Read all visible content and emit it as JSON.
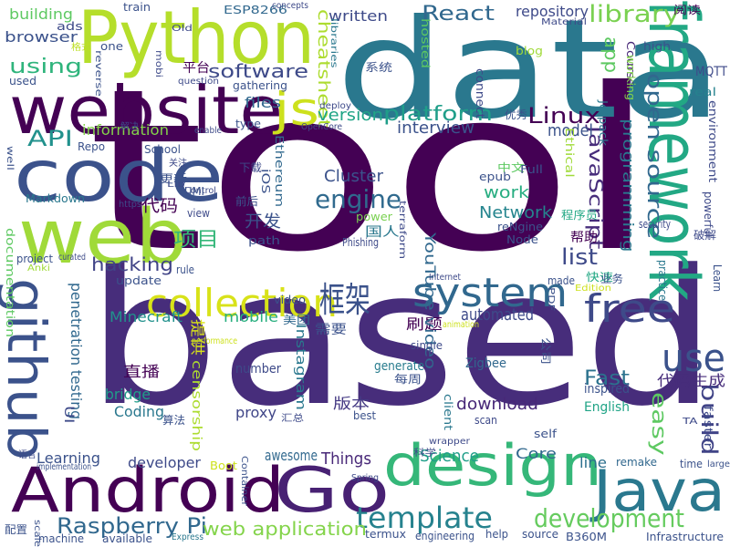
{
  "words": [
    {
      "text": "tool",
      "color": "#440154"
    },
    {
      "text": "based",
      "color": "#472d7b"
    },
    {
      "text": "data",
      "color": "#2a788e"
    },
    {
      "text": "Python",
      "color": "#b5de2b"
    },
    {
      "text": "website",
      "color": "#440154"
    },
    {
      "text": "code",
      "color": "#3b528b"
    },
    {
      "text": "web",
      "color": "#a0da39"
    },
    {
      "text": "framework",
      "color": "#22a884"
    },
    {
      "text": "design",
      "color": "#35b779"
    },
    {
      "text": "Android",
      "color": "#440154"
    },
    {
      "text": "Go",
      "color": "#482173"
    },
    {
      "text": "Java",
      "color": "#2a788e"
    },
    {
      "text": "github",
      "color": "#3b528b"
    },
    {
      "text": "js",
      "color": "#cde11d"
    },
    {
      "text": "system",
      "color": "#31688e"
    },
    {
      "text": "collection",
      "color": "#d8e219"
    },
    {
      "text": "free",
      "color": "#3e4a89"
    },
    {
      "text": "use",
      "color": "#3b528b"
    },
    {
      "text": "template",
      "color": "#26828e"
    },
    {
      "text": "development",
      "color": "#65cb5e"
    },
    {
      "text": "Raspberry Pi",
      "color": "#31688e"
    },
    {
      "text": "web application",
      "color": "#84d44b"
    },
    {
      "text": "React",
      "color": "#31688e"
    },
    {
      "text": "library",
      "color": "#7ad151"
    },
    {
      "text": "using",
      "color": "#2fb47c"
    },
    {
      "text": "software",
      "color": "#3e4a89"
    },
    {
      "text": "platform",
      "color": "#1f9e89"
    },
    {
      "text": "Linux",
      "color": "#440154"
    },
    {
      "text": "框架",
      "color": "#3b528b"
    },
    {
      "text": "engine",
      "color": "#306a8e"
    },
    {
      "text": "open source",
      "color": "#31688e"
    },
    {
      "text": "JavaScript",
      "color": "#472d7b"
    },
    {
      "text": "build",
      "color": "#414487"
    },
    {
      "text": "easy",
      "color": "#5ec962"
    },
    {
      "text": "list",
      "color": "#3e4a89"
    },
    {
      "text": "hacking",
      "color": "#414487"
    },
    {
      "text": "API",
      "color": "#21918c"
    },
    {
      "text": "app",
      "color": "#5ec962"
    },
    {
      "text": "cheatsheet",
      "color": "#addc30"
    },
    {
      "text": "Fast",
      "color": "#2c728e"
    },
    {
      "text": "代码生成",
      "color": "#472d7b"
    },
    {
      "text": "download",
      "color": "#482878"
    },
    {
      "text": "项目",
      "color": "#35b779"
    },
    {
      "text": "代码",
      "color": "#440154"
    },
    {
      "text": "version",
      "color": "#20a486"
    },
    {
      "text": "files",
      "color": "#31688e"
    },
    {
      "text": "interview",
      "color": "#3b528b"
    },
    {
      "text": "model",
      "color": "#3b528b"
    },
    {
      "text": "Cluster",
      "color": "#3b528b"
    },
    {
      "text": "work",
      "color": "#27ad81"
    },
    {
      "text": "Network",
      "color": "#25858e"
    },
    {
      "text": "automated",
      "color": "#3e4a89"
    },
    {
      "text": "Minecraft",
      "color": "#21918c"
    },
    {
      "text": "mobile",
      "color": "#29af7f"
    },
    {
      "text": "penetration testing",
      "color": "#31688e"
    },
    {
      "text": "Things",
      "color": "#482878"
    },
    {
      "text": "Science",
      "color": "#1f9e89"
    },
    {
      "text": "Learning",
      "color": "#3b528b"
    },
    {
      "text": "building",
      "color": "#5ec962"
    },
    {
      "text": "browser",
      "color": "#3b528b"
    },
    {
      "text": "written",
      "color": "#3e4a89"
    },
    {
      "text": "repository",
      "color": "#3e4a89"
    },
    {
      "text": "information",
      "color": "#84d44b"
    },
    {
      "text": "programming",
      "color": "#2a788e"
    },
    {
      "text": "开发",
      "color": "#3b528b"
    },
    {
      "text": "直播",
      "color": "#440154"
    },
    {
      "text": "版本",
      "color": "#443983"
    },
    {
      "text": "刷题",
      "color": "#440154"
    },
    {
      "text": "bridge",
      "color": "#1f9e89"
    },
    {
      "text": "Coding",
      "color": "#2a788e"
    },
    {
      "text": "proxy",
      "color": "#404688"
    },
    {
      "text": "developer",
      "color": "#3e4a89"
    },
    {
      "text": "awesome",
      "color": "#31688e"
    },
    {
      "text": "Core",
      "color": "#31688e"
    },
    {
      "text": "line",
      "color": "#2d708e"
    },
    {
      "text": "YouTube video",
      "color": "#31688e"
    },
    {
      "text": "Instagram",
      "color": "#2a788e"
    },
    {
      "text": "English",
      "color": "#20a486"
    },
    {
      "text": "inspired",
      "color": "#3b528b"
    },
    {
      "text": "generate",
      "color": "#287c8e"
    },
    {
      "text": "Zigbee",
      "color": "#31688e"
    },
    {
      "text": "number",
      "color": "#3e4a89"
    },
    {
      "text": "censorship",
      "color": "#addc30"
    },
    {
      "text": "提供",
      "color": "#d8e219"
    },
    {
      "text": "需要",
      "color": "#3b528b"
    },
    {
      "text": "美团",
      "color": "#31688e"
    },
    {
      "text": "Ethereum",
      "color": "#31688e"
    },
    {
      "text": "Phishing",
      "color": "#3e4a89"
    },
    {
      "text": "国人",
      "color": "#2a788e"
    },
    {
      "text": "reNgine",
      "color": "#3b528b"
    },
    {
      "text": "Node",
      "color": "#3b528b"
    },
    {
      "text": "path",
      "color": "#3b528b"
    },
    {
      "text": "power",
      "color": "#7ad151"
    },
    {
      "text": "中文",
      "color": "#5ec962"
    },
    {
      "text": "Full",
      "color": "#3b528b"
    },
    {
      "text": "epub",
      "color": "#3b528b"
    },
    {
      "text": "程序员",
      "color": "#22a884"
    },
    {
      "text": "帮助",
      "color": "#440154"
    },
    {
      "text": "快速",
      "color": "#22a884"
    },
    {
      "text": "Ethical",
      "color": "#a0da39"
    },
    {
      "text": "Course",
      "color": "#482878"
    },
    {
      "text": "working",
      "color": "#84d44b"
    },
    {
      "text": "MQTT",
      "color": "#3e4a89"
    },
    {
      "text": "high",
      "color": "#3b528b"
    },
    {
      "text": "阅读",
      "color": "#440154"
    },
    {
      "text": "real",
      "color": "#26828e"
    },
    {
      "text": "environment",
      "color": "#3e4a89"
    },
    {
      "text": "powerful",
      "color": "#3e4a89"
    },
    {
      "text": "security",
      "color": "#3e4a89"
    },
    {
      "text": "破解",
      "color": "#3e4a89"
    },
    {
      "text": "Learn",
      "color": "#3b528b"
    },
    {
      "text": "practice",
      "color": "#2a788e"
    },
    {
      "text": "faster",
      "color": "#3e4a89"
    },
    {
      "text": "remake",
      "color": "#31688e"
    },
    {
      "text": "time",
      "color": "#3b528b"
    },
    {
      "text": "large",
      "color": "#3b528b"
    },
    {
      "text": "TA",
      "color": "#3e4a89"
    },
    {
      "text": "ESP8266",
      "color": "#31688e"
    },
    {
      "text": "concepts",
      "color": "#3e4a89"
    },
    {
      "text": "train",
      "color": "#3b528b"
    },
    {
      "text": "ads",
      "color": "#3e4a89"
    },
    {
      "text": "格式",
      "color": "#bddf26"
    },
    {
      "text": "one",
      "color": "#3b528b"
    },
    {
      "text": "Old",
      "color": "#3e4a89"
    },
    {
      "text": "Material",
      "color": "#3e4a89"
    },
    {
      "text": "libraries",
      "color": "#2a788e"
    },
    {
      "text": "hosted",
      "color": "#5ec962"
    },
    {
      "text": "blog",
      "color": "#a0da39"
    },
    {
      "text": "平台",
      "color": "#440154"
    },
    {
      "text": "系统",
      "color": "#3b528b"
    },
    {
      "text": "connect",
      "color": "#3e4a89"
    },
    {
      "text": "reverse",
      "color": "#3b528b"
    },
    {
      "text": "mobi",
      "color": "#3e4a89"
    },
    {
      "text": "used",
      "color": "#3b528b"
    },
    {
      "text": "question",
      "color": "#3e4a89"
    },
    {
      "text": "gathering",
      "color": "#3b528b"
    },
    {
      "text": "deploy",
      "color": "#3e4a89"
    },
    {
      "text": "OpenCore",
      "color": "#3e4a89"
    },
    {
      "text": "type",
      "color": "#3b528b"
    },
    {
      "text": "优秀",
      "color": "#3b528b"
    },
    {
      "text": "Jetpack",
      "color": "#2a788e"
    },
    {
      "text": "enable",
      "color": "#3e4a89"
    },
    {
      "text": "Repo",
      "color": "#3b528b"
    },
    {
      "text": "解决",
      "color": "#3e4a89"
    },
    {
      "text": "School",
      "color": "#3b528b"
    },
    {
      "text": "well",
      "color": "#3b528b"
    },
    {
      "text": "关注",
      "color": "#3e4a89"
    },
    {
      "text": "Lib",
      "color": "#3e4a89"
    },
    {
      "text": "更新",
      "color": "#3b528b"
    },
    {
      "text": "Control",
      "color": "#3e4a89"
    },
    {
      "text": "下载",
      "color": "#3e4a89"
    },
    {
      "text": "iOS",
      "color": "#3b528b"
    },
    {
      "text": "UMI",
      "color": "#3b528b"
    },
    {
      "text": "Markdown",
      "color": "#2a788e"
    },
    {
      "text": "https",
      "color": "#3e4a89"
    },
    {
      "text": "view",
      "color": "#3e4a89"
    },
    {
      "text": "前后",
      "color": "#3b528b"
    },
    {
      "text": "documentation",
      "color": "#5ec962"
    },
    {
      "text": "project",
      "color": "#3b528b"
    },
    {
      "text": "curated",
      "color": "#3e4a89"
    },
    {
      "text": "Anki",
      "color": "#a0da39"
    },
    {
      "text": "update",
      "color": "#3b528b"
    },
    {
      "text": "rule",
      "color": "#3b528b"
    },
    {
      "text": "video",
      "color": "#3b528b"
    },
    {
      "text": "terraform",
      "color": "#3e4a89"
    },
    {
      "text": "Internet",
      "color": "#3e4a89"
    },
    {
      "text": "made",
      "color": "#3b528b"
    },
    {
      "text": "业务",
      "color": "#3b528b"
    },
    {
      "text": "Edition",
      "color": "#cde11d"
    },
    {
      "text": "animation",
      "color": "#cde11d"
    },
    {
      "text": "single",
      "color": "#3e4a89"
    },
    {
      "text": "PDF",
      "color": "#3b528b"
    },
    {
      "text": "公司",
      "color": "#3b528b"
    },
    {
      "text": "performance",
      "color": "#cde11d"
    },
    {
      "text": "UI",
      "color": "#3e4a89"
    },
    {
      "text": "算法",
      "color": "#3b528b"
    },
    {
      "text": "汇总",
      "color": "#3e4a89"
    },
    {
      "text": "client",
      "color": "#2a788e"
    },
    {
      "text": "best",
      "color": "#3b528b"
    },
    {
      "text": "每周",
      "color": "#3b528b"
    },
    {
      "text": "scan",
      "color": "#3e4a89"
    },
    {
      "text": "self",
      "color": "#3b528b"
    },
    {
      "text": "语言",
      "color": "#3e4a89"
    },
    {
      "text": "Boot",
      "color": "#cde11d"
    },
    {
      "text": "implementation",
      "color": "#3b528b"
    },
    {
      "text": "Container",
      "color": "#3b528b"
    },
    {
      "text": "科学",
      "color": "#3e4a89"
    },
    {
      "text": "wrapper",
      "color": "#3e4a89"
    },
    {
      "text": "Spring",
      "color": "#3e4a89"
    },
    {
      "text": "配置",
      "color": "#3b528b"
    },
    {
      "text": "scale",
      "color": "#3b528b"
    },
    {
      "text": "machine",
      "color": "#3b528b"
    },
    {
      "text": "available",
      "color": "#3b528b"
    },
    {
      "text": "Express",
      "color": "#2a788e"
    },
    {
      "text": "termux",
      "color": "#3b528b"
    },
    {
      "text": "engineering",
      "color": "#3b528b"
    },
    {
      "text": "help",
      "color": "#3b528b"
    },
    {
      "text": "source",
      "color": "#3b528b"
    },
    {
      "text": "B360M",
      "color": "#3b528b"
    },
    {
      "text": "Infrastructure",
      "color": "#3b528b"
    }
  ]
}
